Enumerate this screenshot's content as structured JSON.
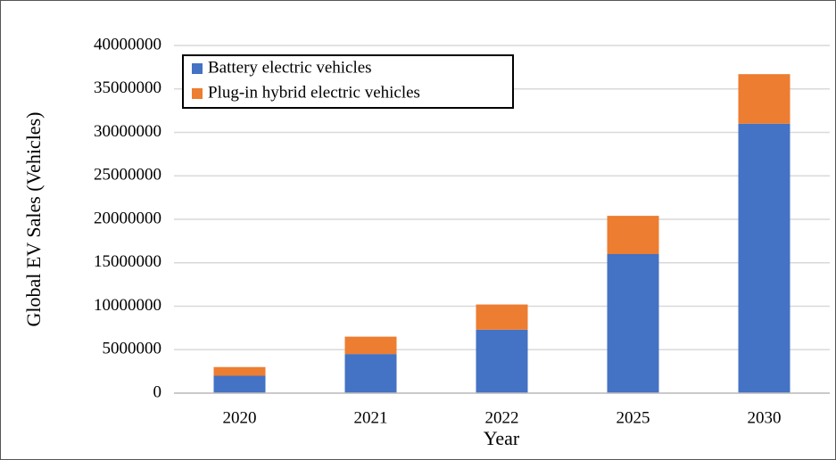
{
  "chart_data": {
    "type": "stacked_bar",
    "categories": [
      "2020",
      "2021",
      "2022",
      "2025",
      "2030"
    ],
    "series": [
      {
        "name": "Battery electric vehicles",
        "color": "#4472c4",
        "values": [
          2000000,
          4500000,
          7300000,
          16000000,
          31000000
        ]
      },
      {
        "name": "Plug-in hybrid electric vehicles",
        "color": "#ed7d31",
        "values": [
          1000000,
          2000000,
          2900000,
          4400000,
          5700000
        ]
      }
    ],
    "xlabel": "Year",
    "ylabel": "Global EV Sales (Vehicles)",
    "ylim": [
      0,
      40000000
    ],
    "yticks": [
      0,
      5000000,
      10000000,
      15000000,
      20000000,
      25000000,
      30000000,
      35000000,
      40000000
    ],
    "grid": true,
    "legend": "upper left"
  }
}
